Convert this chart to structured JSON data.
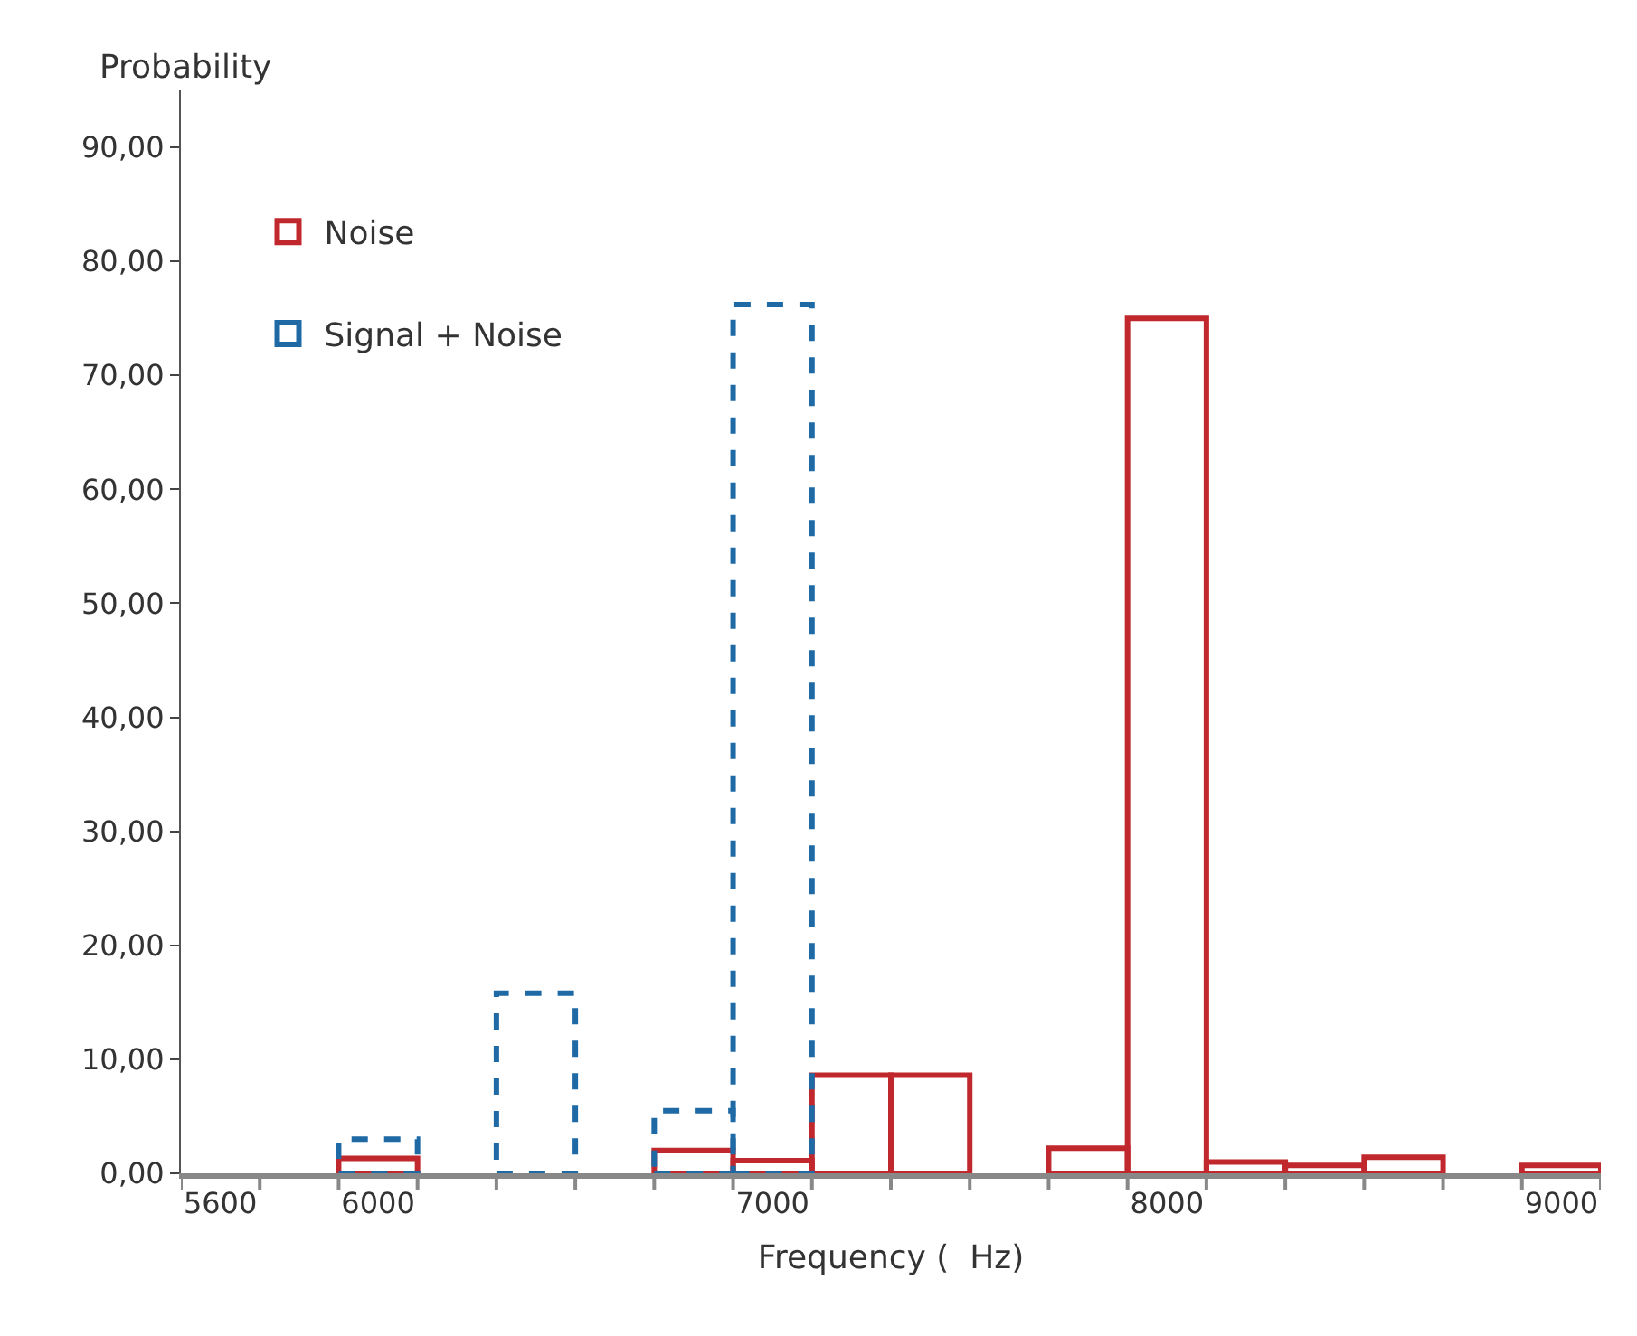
{
  "chart_data": {
    "type": "bar",
    "xlabel": "Frequency (  Hz)",
    "ylabel": "Probability",
    "categories": [
      "5600",
      null,
      "6000",
      null,
      null,
      null,
      null,
      "7000",
      null,
      null,
      null,
      null,
      "8000",
      null,
      null,
      null,
      null,
      "9000"
    ],
    "series": [
      {
        "name": "Signal + Noise",
        "color": "#1f6aa5",
        "line_style": "dashed",
        "values": [
          null,
          null,
          3.0,
          null,
          15.8,
          null,
          5.5,
          76.2,
          null,
          null,
          null,
          null,
          null,
          null,
          null,
          null,
          null,
          null
        ]
      },
      {
        "name": "Noise",
        "color": "#c0282d",
        "line_style": "solid",
        "values": [
          null,
          null,
          1.3,
          null,
          null,
          null,
          2.0,
          1.1,
          8.6,
          8.6,
          null,
          2.2,
          75.0,
          1.0,
          0.7,
          1.4,
          null,
          0.7
        ]
      }
    ],
    "ylim": [
      0,
      95
    ],
    "yticks": [
      {
        "value": 0,
        "label": "0,00"
      },
      {
        "value": 10,
        "label": "10,00"
      },
      {
        "value": 20,
        "label": "20,00"
      },
      {
        "value": 30,
        "label": "30,00"
      },
      {
        "value": 40,
        "label": "40,00"
      },
      {
        "value": 50,
        "label": "50,00"
      },
      {
        "value": 60,
        "label": "60,00"
      },
      {
        "value": 70,
        "label": "70,00"
      },
      {
        "value": 80,
        "label": "80,00"
      },
      {
        "value": 90,
        "label": "90,00"
      }
    ],
    "legend": "top left"
  }
}
